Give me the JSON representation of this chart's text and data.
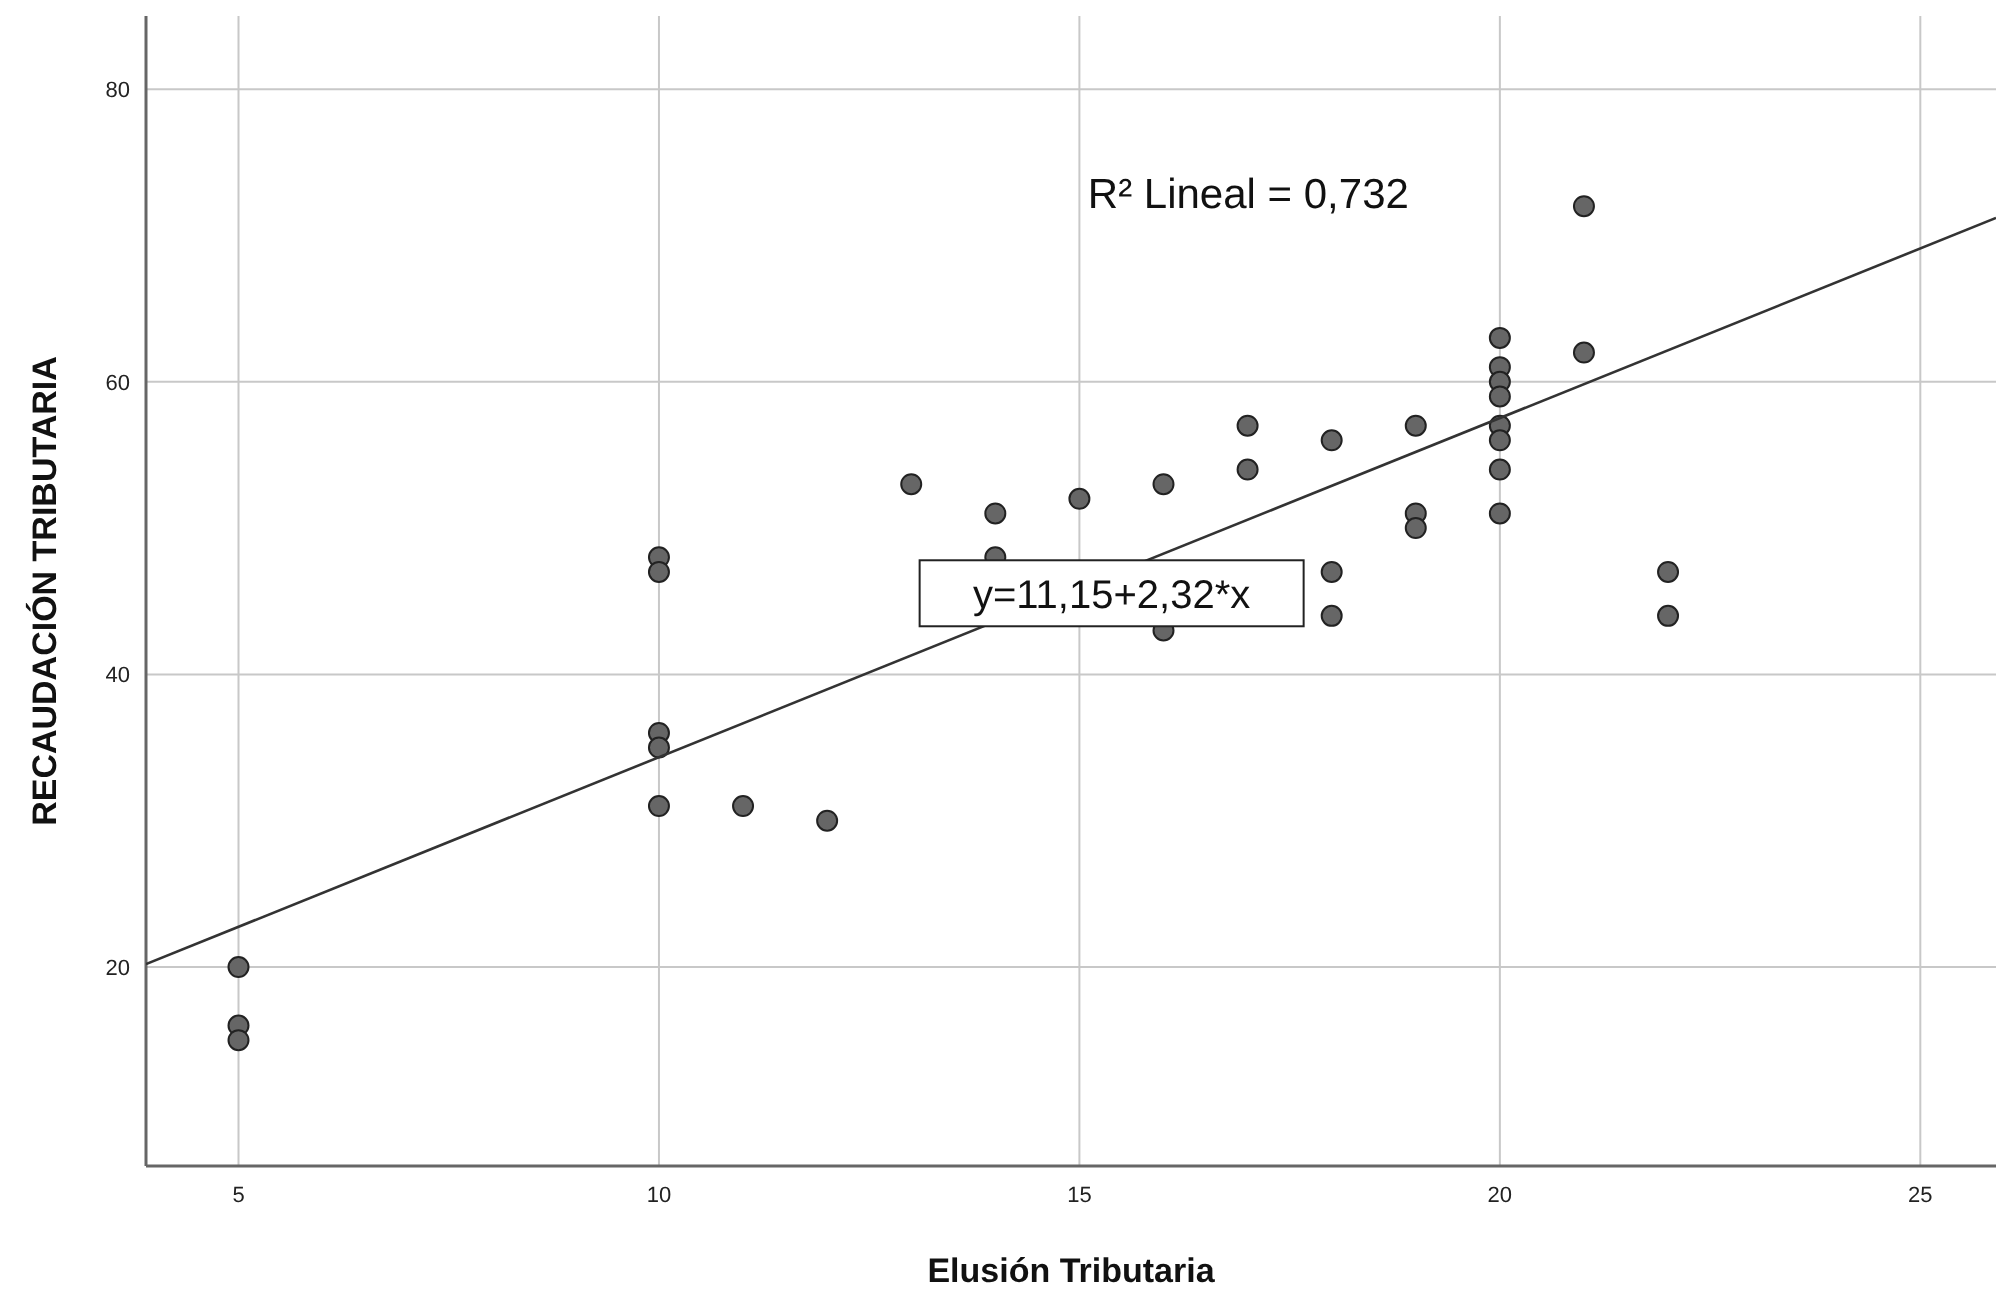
{
  "chart_data": {
    "type": "scatter",
    "xlabel": "Elusión Tributaria",
    "ylabel": "RECAUDACIÓN TRIBUTARIA",
    "xlim": [
      3.9,
      25.9
    ],
    "ylim": [
      6.4,
      85
    ],
    "xticks": [
      5,
      10,
      15,
      20,
      25
    ],
    "yticks": [
      20,
      40,
      60,
      80
    ],
    "grid": true,
    "marker": "circle",
    "annotations": [
      "R² Lineal = 0,732",
      "y=11,15+2,32*x"
    ],
    "series": [
      {
        "color": "#666666",
        "x": [
          5,
          5,
          5,
          10,
          10,
          10,
          10,
          10,
          11,
          12,
          13,
          14,
          14,
          15,
          16,
          16,
          17,
          17,
          18,
          18,
          18,
          19,
          19,
          19,
          20,
          20,
          20,
          20,
          20,
          20,
          20,
          20,
          21,
          21,
          22,
          22
        ],
        "values": [
          20,
          16,
          15,
          48,
          47,
          36,
          35,
          31,
          31,
          30,
          53,
          51,
          48,
          52,
          53,
          43,
          57,
          54,
          56,
          47,
          44,
          57,
          51,
          50,
          63,
          61,
          60,
          59,
          57,
          56,
          54,
          51,
          72,
          62,
          47,
          44
        ]
      },
      {
        "type": "line",
        "marker": "none",
        "color": "#333333",
        "x": [
          3.9,
          25.9
        ],
        "values": [
          20.2,
          71.2
        ]
      }
    ]
  }
}
